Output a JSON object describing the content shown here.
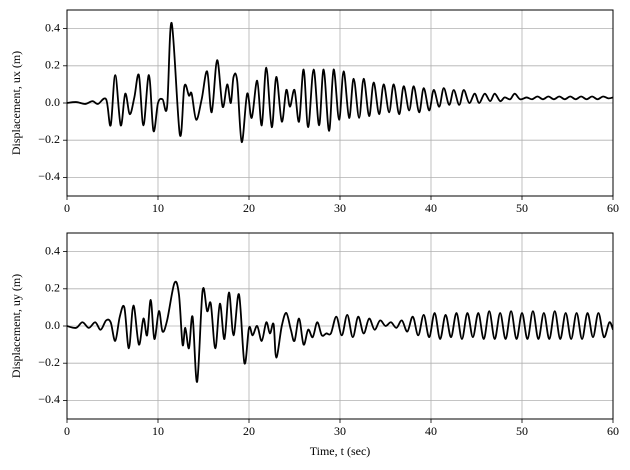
{
  "chart_data": [
    {
      "type": "line",
      "ylabel": "Displacement, ux (m)",
      "color": "#000000",
      "grid": true,
      "xlim": [
        0,
        60
      ],
      "xticks": [
        0,
        10,
        20,
        30,
        40,
        50,
        60
      ],
      "ylim": [
        -0.5,
        0.5
      ],
      "yticks": [
        {
          "value": -0.4,
          "label": "−0.4"
        },
        {
          "value": -0.2,
          "label": "−0.2"
        },
        {
          "value": 0.0,
          "label": "0.0"
        },
        0.2,
        0.4
      ],
      "x": [
        0,
        1,
        2,
        2.8,
        3.4,
        4.3,
        4.8,
        5.3,
        5.9,
        6.4,
        6.9,
        7.4,
        7.9,
        8.4,
        9.0,
        9.5,
        10.0,
        10.5,
        11.0,
        11.5,
        12.4,
        12.9,
        13.4,
        13.7,
        14.2,
        14.8,
        15.4,
        15.9,
        16.5,
        17.1,
        17.6,
        18.0,
        18.3,
        18.7,
        19.2,
        19.8,
        20.3,
        20.9,
        21.4,
        21.9,
        22.5,
        23.0,
        23.6,
        24.1,
        24.5,
        25.0,
        25.5,
        26.0,
        26.5,
        27.1,
        27.7,
        28.2,
        28.8,
        29.3,
        29.9,
        30.4,
        31.0,
        31.5,
        32.1,
        32.6,
        33.2,
        33.7,
        34.3,
        34.8,
        35.4,
        35.9,
        36.5,
        37.0,
        37.6,
        38.1,
        38.7,
        39.2,
        39.8,
        40.3,
        40.9,
        41.4,
        42.0,
        42.5,
        43.1,
        43.6,
        44.2,
        44.8,
        45.3,
        45.9,
        46.5,
        47.0,
        47.6,
        48.1,
        48.7,
        49.2,
        49.8,
        50.5,
        51.1,
        51.7,
        52.3,
        52.9,
        53.5,
        54.1,
        54.7,
        55.3,
        55.9,
        56.5,
        57.1,
        57.7,
        58.3,
        58.9,
        59.5,
        60
      ],
      "values": [
        0,
        0.005,
        -0.005,
        0.01,
        -0.005,
        0.02,
        -0.12,
        0.15,
        -0.12,
        0.05,
        -0.06,
        0.03,
        0.15,
        -0.12,
        0.15,
        -0.15,
        0.0,
        0.02,
        -0.02,
        0.43,
        -0.17,
        0.09,
        0.04,
        0.05,
        -0.09,
        0.02,
        0.17,
        -0.05,
        0.23,
        -0.02,
        0.1,
        0.0,
        0.14,
        0.12,
        -0.21,
        0.05,
        -0.08,
        0.12,
        -0.12,
        0.19,
        -0.13,
        0.14,
        -0.1,
        0.07,
        -0.02,
        0.07,
        -0.1,
        0.18,
        -0.13,
        0.18,
        -0.12,
        0.18,
        -0.15,
        0.18,
        -0.09,
        0.17,
        -0.08,
        0.13,
        -0.08,
        0.13,
        -0.07,
        0.11,
        -0.06,
        0.1,
        -0.05,
        0.1,
        -0.06,
        0.09,
        -0.04,
        0.09,
        -0.05,
        0.08,
        -0.04,
        0.07,
        -0.02,
        0.08,
        -0.01,
        0.07,
        -0.01,
        0.07,
        0.0,
        0.05,
        0.0,
        0.05,
        0.01,
        0.05,
        0.01,
        0.03,
        0.02,
        0.05,
        0.02,
        0.03,
        0.02,
        0.035,
        0.02,
        0.035,
        0.02,
        0.035,
        0.02,
        0.035,
        0.02,
        0.035,
        0.02,
        0.035,
        0.02,
        0.035,
        0.025,
        0.03
      ]
    },
    {
      "type": "line",
      "ylabel": "Displacement, uy (m)",
      "xlabel": "Time, t (sec)",
      "color": "#000000",
      "grid": true,
      "xlim": [
        0,
        60
      ],
      "xticks": [
        0,
        10,
        20,
        30,
        40,
        50,
        60
      ],
      "ylim": [
        -0.5,
        0.5
      ],
      "yticks": [
        {
          "value": -0.4,
          "label": "−0.4"
        },
        {
          "value": -0.2,
          "label": "−0.2"
        },
        {
          "value": 0.0,
          "label": "0.0"
        },
        0.2,
        0.4
      ],
      "x": [
        0,
        1,
        1.7,
        2.4,
        3.1,
        3.7,
        4.3,
        4.8,
        5.3,
        5.8,
        6.3,
        6.8,
        7.3,
        7.9,
        8.4,
        8.8,
        9.2,
        9.6,
        10.1,
        10.5,
        11.0,
        11.8,
        12.3,
        12.7,
        13.0,
        13.4,
        13.8,
        14.3,
        14.9,
        15.4,
        15.8,
        16.3,
        16.8,
        17.3,
        17.8,
        18.3,
        18.9,
        19.5,
        20.0,
        20.4,
        20.9,
        21.4,
        21.9,
        22.3,
        22.7,
        23.0,
        23.6,
        24.1,
        24.6,
        25.0,
        25.5,
        26.0,
        26.5,
        27.0,
        27.5,
        28.0,
        28.5,
        29.0,
        29.6,
        30.2,
        30.8,
        31.4,
        32.0,
        32.6,
        33.2,
        33.8,
        34.4,
        35.0,
        35.6,
        36.2,
        36.8,
        37.4,
        38.0,
        38.6,
        39.2,
        39.8,
        40.4,
        41.0,
        41.6,
        42.2,
        42.8,
        43.4,
        44.0,
        44.6,
        45.2,
        45.8,
        46.4,
        47.0,
        47.6,
        48.2,
        48.8,
        49.4,
        50.0,
        50.6,
        51.2,
        51.8,
        52.4,
        53.0,
        53.6,
        54.2,
        54.8,
        55.4,
        56.0,
        56.6,
        57.2,
        57.8,
        58.4,
        59.0,
        59.6,
        60
      ],
      "values": [
        0,
        -0.01,
        0.02,
        -0.01,
        0.02,
        -0.02,
        0.03,
        0.02,
        -0.08,
        0.05,
        0.1,
        -0.12,
        0.11,
        -0.1,
        0.04,
        -0.05,
        0.14,
        -0.07,
        0.08,
        -0.03,
        0.03,
        0.23,
        0.17,
        -0.1,
        -0.01,
        -0.12,
        0.05,
        -0.3,
        0.19,
        0.08,
        0.12,
        -0.12,
        0.12,
        -0.07,
        0.18,
        -0.05,
        0.17,
        -0.2,
        -0.01,
        -0.05,
        0.0,
        -0.08,
        0.02,
        -0.04,
        0.01,
        -0.17,
        0.0,
        0.07,
        -0.02,
        -0.08,
        0.04,
        -0.1,
        -0.02,
        -0.06,
        0.02,
        -0.05,
        -0.04,
        -0.04,
        0.05,
        -0.05,
        0.06,
        -0.06,
        0.05,
        -0.04,
        0.04,
        -0.02,
        0.03,
        0.0,
        0.02,
        -0.01,
        0.03,
        -0.03,
        0.05,
        -0.05,
        0.06,
        -0.06,
        0.07,
        -0.07,
        0.06,
        -0.06,
        0.07,
        -0.07,
        0.07,
        -0.06,
        0.07,
        -0.07,
        0.08,
        -0.07,
        0.07,
        -0.07,
        0.08,
        -0.07,
        0.07,
        -0.07,
        0.08,
        -0.07,
        0.07,
        -0.07,
        0.08,
        -0.07,
        0.07,
        -0.07,
        0.07,
        -0.07,
        0.07,
        -0.06,
        0.07,
        -0.06,
        0.02,
        -0.02
      ]
    }
  ]
}
